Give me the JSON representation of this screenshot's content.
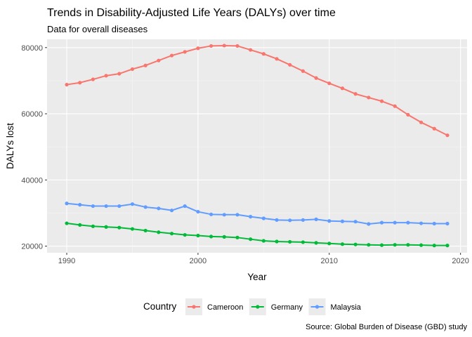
{
  "chart_data": {
    "type": "line",
    "title": "Trends in Disability-Adjusted Life Years (DALYs) over time",
    "subtitle": "Data for overall diseases",
    "xlabel": "Year",
    "ylabel": "DALYs lost",
    "caption": "Source: Global Burden of Disease (GBD) study",
    "legend_title": "Country",
    "legend_position": "bottom",
    "grid": true,
    "xlim": [
      1988.5,
      2020.5
    ],
    "ylim": [
      18000,
      82500
    ],
    "x_ticks": [
      1990,
      2000,
      2010,
      2020
    ],
    "x_tick_labels": [
      "1990",
      "2000",
      "2010",
      "2020"
    ],
    "y_ticks": [
      20000,
      40000,
      60000,
      80000
    ],
    "y_tick_labels": [
      "20000",
      "40000",
      "60000",
      "80000"
    ],
    "x": [
      1990,
      1991,
      1992,
      1993,
      1994,
      1995,
      1996,
      1997,
      1998,
      1999,
      2000,
      2001,
      2002,
      2003,
      2004,
      2005,
      2006,
      2007,
      2008,
      2009,
      2010,
      2011,
      2012,
      2013,
      2014,
      2015,
      2016,
      2017,
      2018,
      2019
    ],
    "series": [
      {
        "name": "Cameroon",
        "color": "#F8766D",
        "values": [
          68800,
          69400,
          70400,
          71500,
          72100,
          73500,
          74600,
          76100,
          77600,
          78700,
          79800,
          80500,
          80600,
          80500,
          79300,
          78100,
          76600,
          74800,
          72900,
          70800,
          69200,
          67700,
          66000,
          64900,
          63800,
          62300,
          59700,
          57400,
          55500,
          53500
        ]
      },
      {
        "name": "Germany",
        "color": "#00BA38",
        "values": [
          26900,
          26400,
          26000,
          25800,
          25600,
          25200,
          24700,
          24200,
          23800,
          23400,
          23200,
          22900,
          22800,
          22600,
          22100,
          21600,
          21400,
          21300,
          21200,
          21000,
          20800,
          20600,
          20500,
          20400,
          20300,
          20400,
          20400,
          20300,
          20200,
          20200
        ]
      },
      {
        "name": "Malaysia",
        "color": "#619CFF",
        "values": [
          32900,
          32500,
          32100,
          32100,
          32100,
          32700,
          31800,
          31400,
          30800,
          32100,
          30400,
          29600,
          29500,
          29500,
          28900,
          28400,
          27900,
          27800,
          27900,
          28100,
          27600,
          27500,
          27400,
          26700,
          27100,
          27100,
          27100,
          26900,
          26800,
          26800
        ]
      }
    ]
  }
}
